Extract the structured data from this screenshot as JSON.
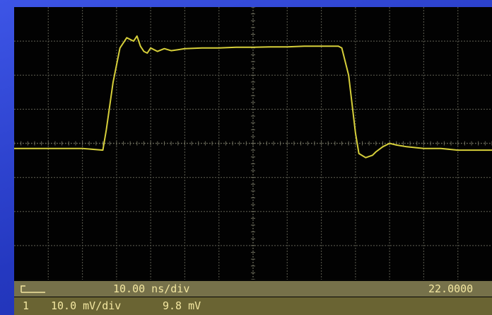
{
  "chart_data": {
    "type": "line",
    "title": "",
    "xlabel": "",
    "ylabel": "",
    "grid": true,
    "x_divisions": 14,
    "y_divisions": 8,
    "time_per_div": "10.00 ns/div",
    "volts_per_div": "10.0 mV/div",
    "series": [
      {
        "color": "#d6cf3a",
        "x": [
          0.0,
          1.0,
          2.0,
          2.6,
          2.7,
          2.9,
          3.1,
          3.3,
          3.5,
          3.6,
          3.7,
          3.8,
          3.9,
          4.0,
          4.2,
          4.4,
          4.6,
          4.8,
          5.0,
          5.5,
          6.0,
          6.5,
          7.0,
          7.5,
          8.0,
          8.5,
          9.0,
          9.3,
          9.5,
          9.6,
          9.8,
          10.0,
          10.1,
          10.3,
          10.5,
          10.6,
          10.8,
          11.0,
          11.2,
          11.5,
          12.0,
          12.5,
          13.0,
          13.5,
          14.0
        ],
        "y": [
          -0.15,
          -0.15,
          -0.15,
          -0.2,
          0.4,
          1.8,
          2.8,
          3.1,
          3.0,
          3.15,
          2.85,
          2.7,
          2.65,
          2.8,
          2.7,
          2.78,
          2.72,
          2.75,
          2.78,
          2.8,
          2.8,
          2.82,
          2.82,
          2.83,
          2.83,
          2.85,
          2.85,
          2.85,
          2.85,
          2.8,
          2.0,
          0.3,
          -0.3,
          -0.42,
          -0.35,
          -0.25,
          -0.1,
          0.0,
          -0.05,
          -0.1,
          -0.15,
          -0.15,
          -0.2,
          -0.2,
          -0.2
        ]
      }
    ]
  },
  "status": {
    "timebase": "10.00 ns/div",
    "trigger_position": "22.0000",
    "channel_number": "1",
    "channel_scale": "10.0 mV/div",
    "channel_reading": "9.8 mV"
  },
  "colors": {
    "trace": "#d6cf3a",
    "grid": "#4f4f45",
    "status_text": "#f2e6a0"
  },
  "icons": {
    "trigger": "trigger-marker-icon"
  }
}
